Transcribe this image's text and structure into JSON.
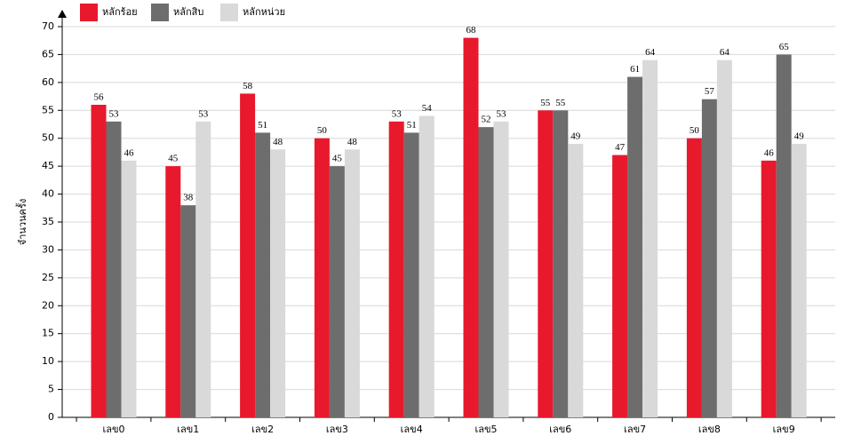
{
  "chart_data": {
    "type": "bar",
    "y_label": "จำนวนครั้ง",
    "categories": [
      "เลข0",
      "เลข1",
      "เลข2",
      "เลข3",
      "เลข4",
      "เลข5",
      "เลข6",
      "เลข7",
      "เลข8",
      "เลข9"
    ],
    "series": [
      {
        "name": "หลักร้อย",
        "color": "#e8192c",
        "values": [
          56,
          45,
          58,
          50,
          53,
          68,
          55,
          47,
          50,
          46
        ]
      },
      {
        "name": "หลักสิบ",
        "color": "#6d6d6d",
        "values": [
          53,
          38,
          51,
          45,
          51,
          52,
          55,
          61,
          57,
          65
        ]
      },
      {
        "name": "หลักหน่วย",
        "color": "#d9d9d9",
        "values": [
          46,
          53,
          48,
          48,
          54,
          53,
          49,
          64,
          64,
          49
        ]
      }
    ],
    "ylim": [
      0,
      70
    ],
    "yticks": [
      0,
      5,
      10,
      15,
      20,
      25,
      30,
      35,
      40,
      45,
      50,
      55,
      60,
      65,
      70
    ],
    "grid": true,
    "legend": "top-left"
  }
}
